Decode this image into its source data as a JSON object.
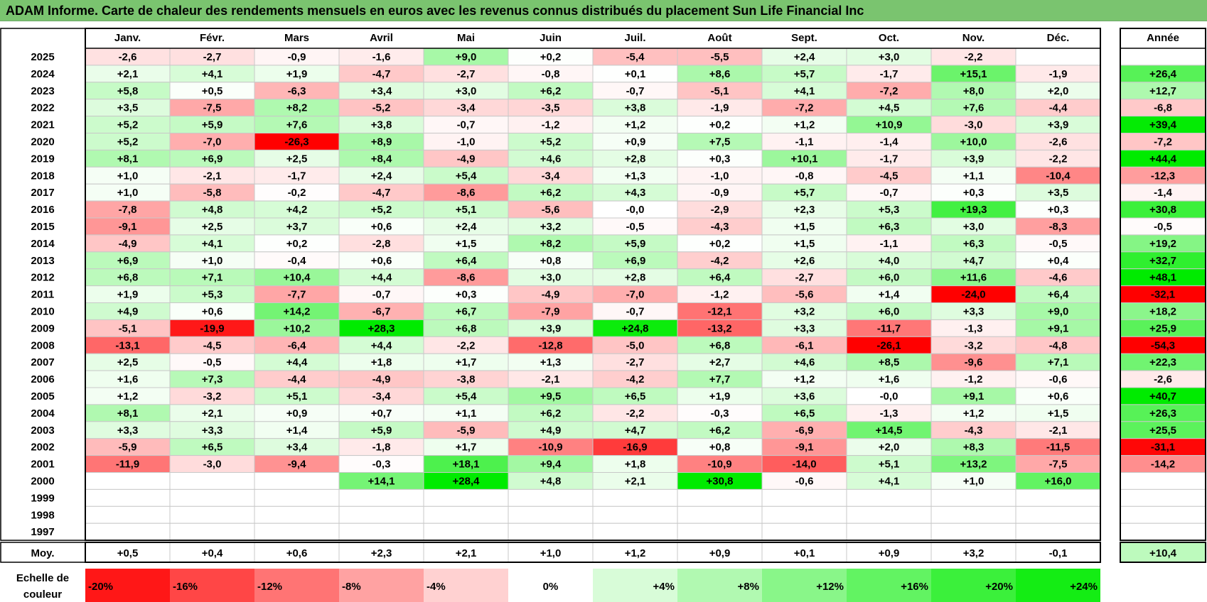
{
  "title": "ADAM Informe. Carte de chaleur des rendements mensuels en euros avec les revenus connus distribués du placement Sun Life Financial Inc",
  "title_bg": "#7ac46f",
  "chart_data": {
    "type": "heatmap",
    "title": "ADAM Informe. Carte de chaleur des rendements mensuels en euros avec les revenus connus distribués du placement Sun Life Financial Inc",
    "columns": [
      "Janv.",
      "Févr.",
      "Mars",
      "Avril",
      "Mai",
      "Juin",
      "Juil.",
      "Août",
      "Sept.",
      "Oct.",
      "Nov.",
      "Déc."
    ],
    "year_header": "Année",
    "rows": [
      {
        "year": "2025",
        "months": [
          "-2,6",
          "-2,7",
          "-0,9",
          "-1,6",
          "+9,0",
          "+0,2",
          "-5,4",
          "-5,5",
          "+2,4",
          "+3,0",
          "-2,2",
          ""
        ],
        "annual": ""
      },
      {
        "year": "2024",
        "months": [
          "+2,1",
          "+4,1",
          "+1,9",
          "-4,7",
          "-2,7",
          "-0,8",
          "+0,1",
          "+8,6",
          "+5,7",
          "-1,7",
          "+15,1",
          "-1,9"
        ],
        "annual": "+26,4"
      },
      {
        "year": "2023",
        "months": [
          "+5,8",
          "+0,5",
          "-6,3",
          "+3,4",
          "+3,0",
          "+6,2",
          "-0,7",
          "-5,1",
          "+4,1",
          "-7,2",
          "+8,0",
          "+2,0"
        ],
        "annual": "+12,7"
      },
      {
        "year": "2022",
        "months": [
          "+3,5",
          "-7,5",
          "+8,2",
          "-5,2",
          "-3,4",
          "-3,5",
          "+3,8",
          "-1,9",
          "-7,2",
          "+4,5",
          "+7,6",
          "-4,4"
        ],
        "annual": "-6,8"
      },
      {
        "year": "2021",
        "months": [
          "+5,2",
          "+5,9",
          "+7,6",
          "+3,8",
          "-0,7",
          "-1,2",
          "+1,2",
          "+0,2",
          "+1,2",
          "+10,9",
          "-3,0",
          "+3,9"
        ],
        "annual": "+39,4"
      },
      {
        "year": "2020",
        "months": [
          "+5,2",
          "-7,0",
          "-26,3",
          "+8,9",
          "-1,0",
          "+5,2",
          "+0,9",
          "+7,5",
          "-1,1",
          "-1,4",
          "+10,0",
          "-2,6"
        ],
        "annual": "-7,2"
      },
      {
        "year": "2019",
        "months": [
          "+8,1",
          "+6,9",
          "+2,5",
          "+8,4",
          "-4,9",
          "+4,6",
          "+2,8",
          "+0,3",
          "+10,1",
          "-1,7",
          "+3,9",
          "-2,2"
        ],
        "annual": "+44,4"
      },
      {
        "year": "2018",
        "months": [
          "+1,0",
          "-2,1",
          "-1,7",
          "+2,4",
          "+5,4",
          "-3,4",
          "+1,3",
          "-1,0",
          "-0,8",
          "-4,5",
          "+1,1",
          "-10,4"
        ],
        "annual": "-12,3"
      },
      {
        "year": "2017",
        "months": [
          "+1,0",
          "-5,8",
          "-0,2",
          "-4,7",
          "-8,6",
          "+6,2",
          "+4,3",
          "-0,9",
          "+5,7",
          "-0,7",
          "+0,3",
          "+3,5"
        ],
        "annual": "-1,4"
      },
      {
        "year": "2016",
        "months": [
          "-7,8",
          "+4,8",
          "+4,2",
          "+5,2",
          "+5,1",
          "-5,6",
          "-0,0",
          "-2,9",
          "+2,3",
          "+5,3",
          "+19,3",
          "+0,3"
        ],
        "annual": "+30,8"
      },
      {
        "year": "2015",
        "months": [
          "-9,1",
          "+2,5",
          "+3,7",
          "+0,6",
          "+2,4",
          "+3,2",
          "-0,5",
          "-4,3",
          "+1,5",
          "+6,3",
          "+3,0",
          "-8,3"
        ],
        "annual": "-0,5"
      },
      {
        "year": "2014",
        "months": [
          "-4,9",
          "+4,1",
          "+0,2",
          "-2,8",
          "+1,5",
          "+8,2",
          "+5,9",
          "+0,2",
          "+1,5",
          "-1,1",
          "+6,3",
          "-0,5"
        ],
        "annual": "+19,2"
      },
      {
        "year": "2013",
        "months": [
          "+6,9",
          "+1,0",
          "-0,4",
          "+0,6",
          "+6,4",
          "+0,8",
          "+6,9",
          "-4,2",
          "+2,6",
          "+4,0",
          "+4,7",
          "+0,4"
        ],
        "annual": "+32,7"
      },
      {
        "year": "2012",
        "months": [
          "+6,8",
          "+7,1",
          "+10,4",
          "+4,4",
          "-8,6",
          "+3,0",
          "+2,8",
          "+6,4",
          "-2,7",
          "+6,0",
          "+11,6",
          "-4,6"
        ],
        "annual": "+48,1"
      },
      {
        "year": "2011",
        "months": [
          "+1,9",
          "+5,3",
          "-7,7",
          "-0,7",
          "+0,3",
          "-4,9",
          "-7,0",
          "-1,2",
          "-5,6",
          "+1,4",
          "-24,0",
          "+6,4"
        ],
        "annual": "-32,1"
      },
      {
        "year": "2010",
        "months": [
          "+4,9",
          "+0,6",
          "+14,2",
          "-6,7",
          "+6,7",
          "-7,9",
          "-0,7",
          "-12,1",
          "+3,2",
          "+6,0",
          "+3,3",
          "+9,0"
        ],
        "annual": "+18,2"
      },
      {
        "year": "2009",
        "months": [
          "-5,1",
          "-19,9",
          "+10,2",
          "+28,3",
          "+6,8",
          "+3,9",
          "+24,8",
          "-13,2",
          "+3,3",
          "-11,7",
          "-1,3",
          "+9,1"
        ],
        "annual": "+25,9"
      },
      {
        "year": "2008",
        "months": [
          "-13,1",
          "-4,5",
          "-6,4",
          "+4,4",
          "-2,2",
          "-12,8",
          "-5,0",
          "+6,8",
          "-6,1",
          "-26,1",
          "-3,2",
          "-4,8"
        ],
        "annual": "-54,3"
      },
      {
        "year": "2007",
        "months": [
          "+2,5",
          "-0,5",
          "+4,4",
          "+1,8",
          "+1,7",
          "+1,3",
          "-2,7",
          "+2,7",
          "+4,6",
          "+8,5",
          "-9,6",
          "+7,1"
        ],
        "annual": "+22,3"
      },
      {
        "year": "2006",
        "months": [
          "+1,6",
          "+7,3",
          "-4,4",
          "-4,9",
          "-3,8",
          "-2,1",
          "-4,2",
          "+7,7",
          "+1,2",
          "+1,6",
          "-1,2",
          "-0,6"
        ],
        "annual": "-2,6"
      },
      {
        "year": "2005",
        "months": [
          "+1,2",
          "-3,2",
          "+5,1",
          "-3,4",
          "+5,4",
          "+9,5",
          "+6,5",
          "+1,9",
          "+3,6",
          "-0,0",
          "+9,1",
          "+0,6"
        ],
        "annual": "+40,7"
      },
      {
        "year": "2004",
        "months": [
          "+8,1",
          "+2,1",
          "+0,9",
          "+0,7",
          "+1,1",
          "+6,2",
          "-2,2",
          "-0,3",
          "+6,5",
          "-1,3",
          "+1,2",
          "+1,5"
        ],
        "annual": "+26,3"
      },
      {
        "year": "2003",
        "months": [
          "+3,3",
          "+3,3",
          "+1,4",
          "+5,9",
          "-5,9",
          "+4,9",
          "+4,7",
          "+6,2",
          "-6,9",
          "+14,5",
          "-4,3",
          "-2,1"
        ],
        "annual": "+25,5"
      },
      {
        "year": "2002",
        "months": [
          "-5,9",
          "+6,5",
          "+3,4",
          "-1,8",
          "+1,7",
          "-10,9",
          "-16,9",
          "+0,8",
          "-9,1",
          "+2,0",
          "+8,3",
          "-11,5"
        ],
        "annual": "-31,1"
      },
      {
        "year": "2001",
        "months": [
          "-11,9",
          "-3,0",
          "-9,4",
          "-0,3",
          "+18,1",
          "+9,4",
          "+1,8",
          "-10,9",
          "-14,0",
          "+5,1",
          "+13,2",
          "-7,5"
        ],
        "annual": "-14,2"
      },
      {
        "year": "2000",
        "months": [
          "",
          "",
          "",
          "+14,1",
          "+28,4",
          "+4,8",
          "+2,1",
          "+30,8",
          "-0,6",
          "+4,1",
          "+1,0",
          "+16,0"
        ],
        "annual": ""
      },
      {
        "year": "1999",
        "months": [
          "",
          "",
          "",
          "",
          "",
          "",
          "",
          "",
          "",
          "",
          "",
          ""
        ],
        "annual": ""
      },
      {
        "year": "1998",
        "months": [
          "",
          "",
          "",
          "",
          "",
          "",
          "",
          "",
          "",
          "",
          "",
          ""
        ],
        "annual": ""
      },
      {
        "year": "1997",
        "months": [
          "",
          "",
          "",
          "",
          "",
          "",
          "",
          "",
          "",
          "",
          "",
          ""
        ],
        "annual": ""
      }
    ],
    "average": {
      "label": "Moy.",
      "months": [
        "+0,5",
        "+0,4",
        "+0,6",
        "+2,3",
        "+2,1",
        "+1,0",
        "+1,2",
        "+0,9",
        "+0,1",
        "+0,9",
        "+3,2",
        "-0,1"
      ],
      "annual": "+10,4"
    },
    "scale": {
      "label_line1": "Echelle de",
      "label_line2": "couleur",
      "steps": [
        "-20%",
        "-16%",
        "-12%",
        "-8%",
        "-4%",
        "0%",
        "+4%",
        "+8%",
        "+12%",
        "+16%",
        "+20%",
        "+24%"
      ]
    },
    "colors": {
      "negative_max": "#ff0000",
      "neutral": "#ffffff",
      "positive_max": "#00e600",
      "text": "#000000",
      "grid": "#c8c8c8",
      "frame": "#000000"
    }
  }
}
